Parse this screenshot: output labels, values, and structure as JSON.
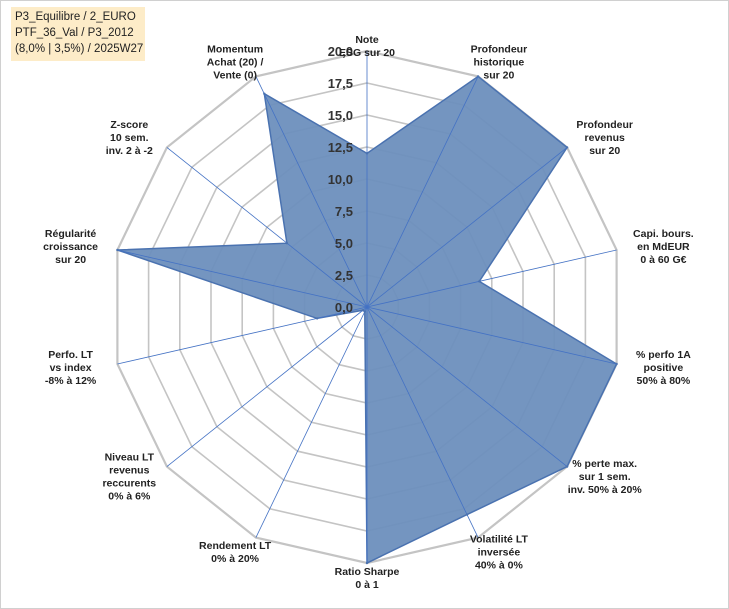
{
  "info_box": {
    "line1": "P3_Equilibre / 2_EURO",
    "line2": "PTF_36_Val / P3_2012",
    "line3": "(8,0% | 3,5%) / 2025W27"
  },
  "chart_data": {
    "type": "radar",
    "rmin": 0,
    "rmax": 20,
    "ticks": [
      "0,0",
      "2,5",
      "5,0",
      "7,5",
      "10,0",
      "12,5",
      "15,0",
      "17,5",
      "20,0"
    ],
    "tick_values": [
      0,
      2.5,
      5,
      7.5,
      10,
      12.5,
      15,
      17.5,
      20
    ],
    "grid": true,
    "colors": {
      "fill": "#6d8fbd",
      "stroke": "#4a72b0",
      "grid": "#c4c4c4",
      "spoke": "#4472c4"
    },
    "axes": [
      {
        "lines": [
          "Note",
          "ESG sur 20"
        ],
        "value": 12
      },
      {
        "lines": [
          "Profondeur",
          "historique",
          "sur 20"
        ],
        "value": 20
      },
      {
        "lines": [
          "Profondeur",
          "revenus",
          "sur 20"
        ],
        "value": 20
      },
      {
        "lines": [
          "Capi. bours.",
          "en MdEUR",
          "0 à 60 G€"
        ],
        "value": 9
      },
      {
        "lines": [
          "% perfo 1A",
          "positive",
          "50% à 80%"
        ],
        "value": 20
      },
      {
        "lines": [
          "% perte max.",
          "sur 1 sem.",
          "inv. 50% à 20%"
        ],
        "value": 20
      },
      {
        "lines": [
          "Volatilité LT",
          "inversée",
          "40% à 0%"
        ],
        "value": 18
      },
      {
        "lines": [
          "Ratio Sharpe",
          "0 à 1"
        ],
        "value": 20
      },
      {
        "lines": [
          "Rendement LT",
          "0% à 20%"
        ],
        "value": 0.4
      },
      {
        "lines": [
          "Niveau LT",
          "revenus",
          "reccurents",
          "0% à 6%"
        ],
        "value": 0.4
      },
      {
        "lines": [
          "Perfo. LT",
          "vs index",
          "-8% à 12%"
        ],
        "value": 4
      },
      {
        "lines": [
          "Régularité",
          "croissance",
          "sur 20"
        ],
        "value": 20
      },
      {
        "lines": [
          "Z-score",
          "10 sem.",
          "inv. 2 à -2"
        ],
        "value": 8
      },
      {
        "lines": [
          "Momentum",
          "Achat (20) /",
          "Vente (0)"
        ],
        "value": 18.5
      }
    ]
  }
}
